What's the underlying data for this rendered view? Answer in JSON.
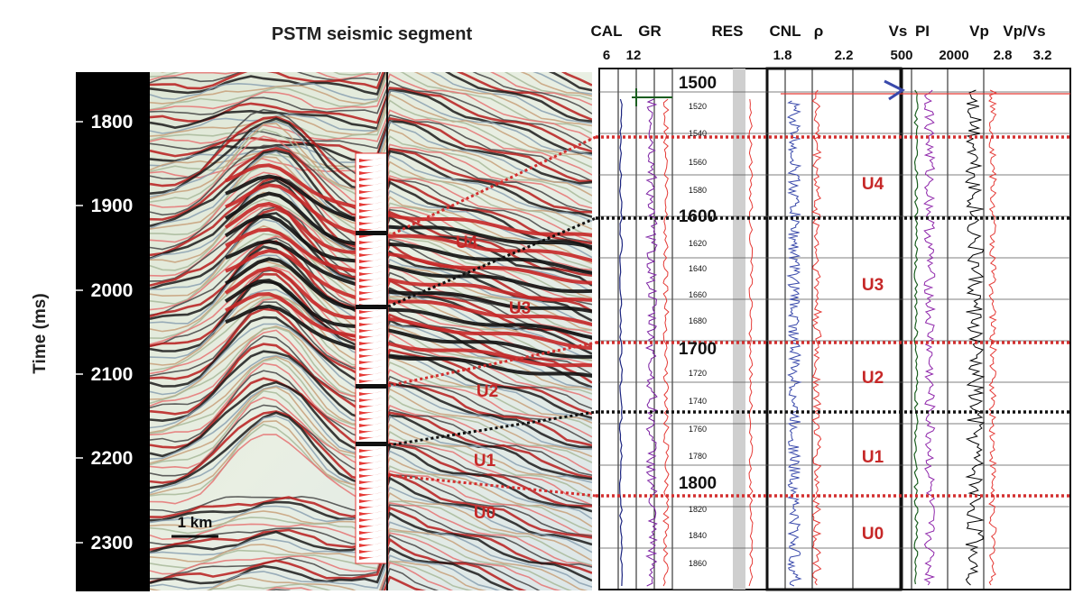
{
  "seismic": {
    "title": "PSTM seismic segment",
    "y_axis_label": "Time (ms)",
    "time_ticks": [
      "1800",
      "1900",
      "2000",
      "2100",
      "2200",
      "2300"
    ],
    "scale_bar": "1 km",
    "units": [
      {
        "name": "U4"
      },
      {
        "name": "U3"
      },
      {
        "name": "U2"
      },
      {
        "name": "U1"
      },
      {
        "name": "U0"
      }
    ]
  },
  "well_log": {
    "headers": [
      {
        "label": "CAL",
        "scale": "6"
      },
      {
        "label": "GR",
        "scale": "12"
      },
      {
        "label": "RES",
        "scale": ""
      },
      {
        "label": "CNL",
        "scale": "1.8"
      },
      {
        "label": "ρ",
        "scale": "2.2"
      },
      {
        "label": "Vs",
        "scale": "500"
      },
      {
        "label": "PI",
        "scale": ""
      },
      {
        "label": "Vp",
        "scale": "2000"
      },
      {
        "label": "Vp/Vs",
        "scale": "2.8"
      },
      {
        "label": "",
        "scale": "3.2"
      }
    ],
    "depth_major": [
      "1500",
      "1600",
      "1700",
      "1800"
    ],
    "depth_minor": [
      "1520",
      "1540",
      "1560",
      "1580",
      "1620",
      "1640",
      "1660",
      "1680",
      "1720",
      "1740",
      "1760",
      "1780",
      "1820",
      "1840",
      "1860"
    ],
    "units": [
      "U4",
      "U3",
      "U2",
      "U1",
      "U0"
    ],
    "colors": {
      "cal": "#1a237e",
      "gr": "#7b1fa2",
      "res": "#e53935",
      "cnl": "#3949ab",
      "rho": "#e53935",
      "vs": "#1b5e20",
      "pi": "#8e24aa",
      "vp": "#e53935",
      "vpvs": "#000000",
      "boundary_red": "#d32f2f",
      "boundary_black": "#111111"
    }
  }
}
